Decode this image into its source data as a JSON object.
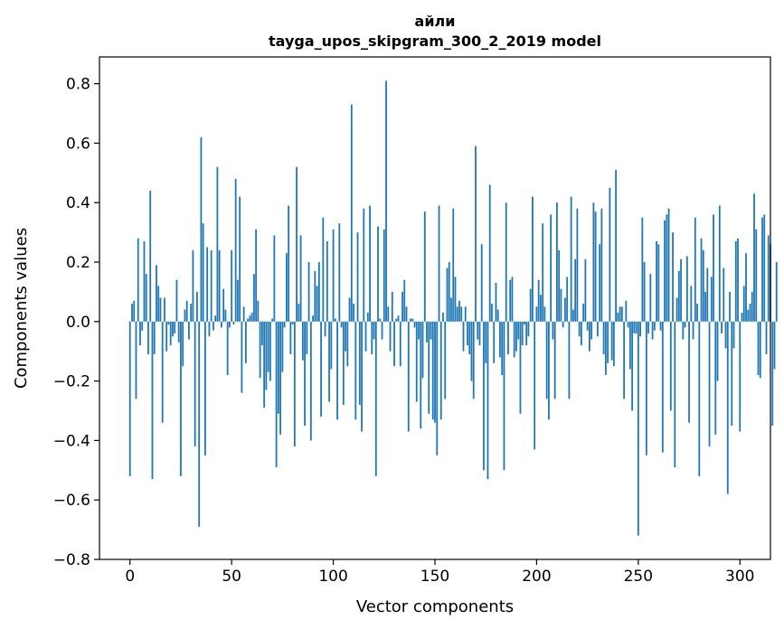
{
  "chart_data": {
    "type": "bar",
    "title": "айли",
    "subtitle": "tayga_upos_skipgram_300_2_2019 model",
    "xlabel": "Vector components",
    "ylabel": "Components values",
    "xlim": [
      -15,
      315
    ],
    "ylim": [
      -0.8,
      0.89
    ],
    "xticks": [
      0,
      50,
      100,
      150,
      200,
      250,
      300
    ],
    "xtick_labels": [
      "0",
      "50",
      "100",
      "150",
      "200",
      "250",
      "300"
    ],
    "yticks": [
      -0.8,
      -0.6,
      -0.4,
      -0.2,
      0.0,
      0.2,
      0.4,
      0.6,
      0.8
    ],
    "ytick_labels": [
      "−0.8",
      "−0.6",
      "−0.4",
      "−0.2",
      "0.0",
      "0.2",
      "0.4",
      "0.6",
      "0.8"
    ],
    "color": "#1f77b4",
    "values": [
      -0.52,
      0.06,
      0.07,
      -0.26,
      0.28,
      -0.08,
      -0.03,
      0.27,
      0.16,
      -0.11,
      0.44,
      -0.53,
      -0.11,
      0.19,
      0.12,
      0.08,
      -0.34,
      0.08,
      -0.1,
      -0.01,
      -0.08,
      -0.05,
      -0.04,
      0.14,
      -0.07,
      -0.52,
      -0.15,
      0.04,
      0.07,
      -0.06,
      0.06,
      0.24,
      -0.42,
      0.1,
      -0.69,
      0.62,
      0.33,
      -0.45,
      0.25,
      -0.05,
      0.24,
      -0.03,
      0.02,
      0.52,
      0.24,
      -0.02,
      0.11,
      0.04,
      -0.18,
      -0.02,
      0.24,
      -0.01,
      0.48,
      0.14,
      0.42,
      -0.24,
      0.05,
      -0.14,
      0.01,
      0.02,
      0.03,
      0.16,
      0.31,
      0.07,
      -0.19,
      -0.08,
      -0.29,
      -0.23,
      -0.17,
      -0.2,
      0.01,
      0.29,
      -0.49,
      -0.31,
      -0.38,
      -0.17,
      -0.02,
      0.23,
      0.39,
      -0.11,
      -0.01,
      -0.42,
      0.52,
      0.06,
      0.29,
      -0.13,
      -0.35,
      -0.11,
      0.2,
      -0.4,
      0.02,
      0.17,
      0.12,
      0.2,
      -0.32,
      0.35,
      -0.05,
      0.27,
      -0.27,
      -0.16,
      0.31,
      0.01,
      -0.33,
      0.33,
      -0.02,
      -0.28,
      -0.1,
      -0.15,
      0.08,
      0.73,
      0.06,
      -0.33,
      0.3,
      -0.28,
      -0.37,
      0.38,
      -0.1,
      0.03,
      0.39,
      -0.11,
      -0.06,
      -0.52,
      0.32,
      0.01,
      -0.06,
      0.31,
      0.81,
      0.05,
      -0.1,
      0.1,
      -0.15,
      0.01,
      0.02,
      -0.15,
      0.1,
      0.14,
      0.05,
      -0.37,
      0.01,
      0.01,
      -0.02,
      -0.27,
      -0.06,
      -0.36,
      -0.19,
      0.37,
      -0.07,
      -0.31,
      -0.06,
      -0.33,
      -0.34,
      -0.45,
      0.39,
      -0.33,
      0.03,
      -0.26,
      0.18,
      0.2,
      0.08,
      0.38,
      0.15,
      0.05,
      0.07,
      0.05,
      -0.1,
      0.05,
      -0.08,
      -0.11,
      -0.2,
      -0.26,
      0.59,
      -0.06,
      -0.08,
      0.26,
      -0.5,
      -0.14,
      -0.53,
      0.46,
      0.06,
      -0.14,
      0.13,
      0.04,
      -0.12,
      -0.18,
      -0.5,
      0.4,
      -0.11,
      0.14,
      0.15,
      -0.12,
      -0.1,
      -0.06,
      -0.31,
      -0.08,
      -0.01,
      -0.08,
      -0.05,
      0.11,
      0.42,
      -0.43,
      0.05,
      0.14,
      0.09,
      0.33,
      0.05,
      -0.26,
      -0.33,
      0.36,
      -0.06,
      -0.26,
      0.4,
      0.24,
      0.11,
      -0.02,
      0.08,
      0.15,
      -0.26,
      0.42,
      0.04,
      0.21,
      0.38,
      -0.05,
      -0.08,
      0.06,
      0.21,
      -0.03,
      -0.1,
      -0.06,
      0.4,
      0.37,
      -0.05,
      0.26,
      0.38,
      -0.11,
      -0.18,
      -0.14,
      0.45,
      -0.13,
      -0.15,
      0.51,
      0.03,
      0.05,
      0.05,
      -0.26,
      0.07,
      -0.02,
      -0.16,
      -0.3,
      -0.04,
      -0.04,
      -0.72,
      -0.05,
      0.35,
      0.2,
      -0.45,
      -0.04,
      0.16,
      -0.06,
      -0.03,
      0.27,
      0.26,
      -0.03,
      -0.44,
      0.34,
      0.36,
      0.38,
      -0.3,
      0.3,
      -0.49,
      0.08,
      0.17,
      0.21,
      -0.06,
      -0.02,
      0.22,
      -0.34,
      0.12,
      -0.06,
      0.35,
      0.06,
      -0.52,
      0.28,
      0.24,
      0.1,
      0.18,
      -0.42,
      0.15,
      0.36,
      -0.38,
      -0.2,
      0.39,
      -0.04,
      0.18,
      -0.09,
      -0.58,
      0.1,
      -0.35,
      -0.09,
      0.27,
      0.28,
      -0.37,
      0.03,
      0.12,
      0.23,
      0.04,
      0.06,
      0.1,
      0.43,
      0.31,
      -0.18,
      -0.19,
      0.35,
      0.36,
      -0.11,
      0.29,
      0.26,
      -0.35,
      -0.16,
      0.2
    ]
  }
}
